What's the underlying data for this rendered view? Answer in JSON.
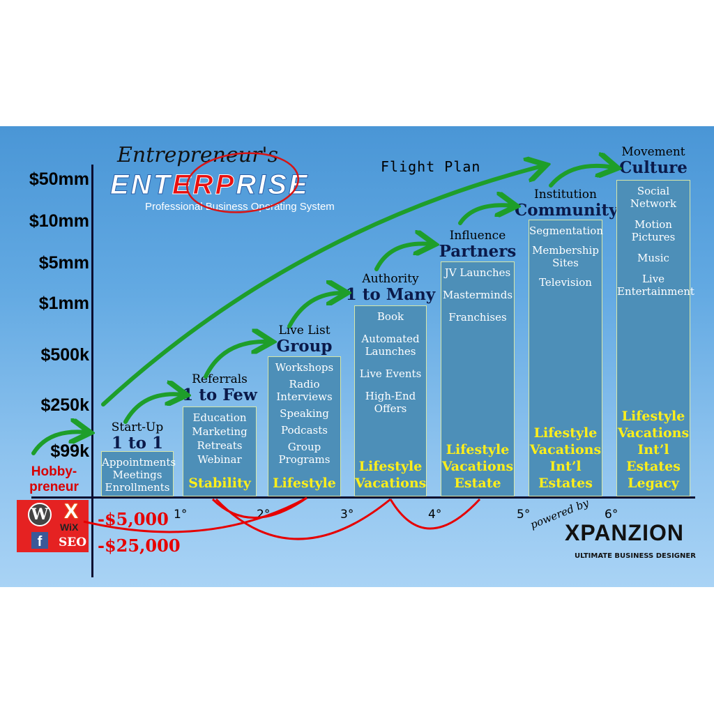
{
  "logo": {
    "script": "Entrepreneur's",
    "word": "ENTERPRISE",
    "word_parts": [
      "ENT",
      "ERP",
      "RISE"
    ],
    "tagline": "Professional Business Operating System"
  },
  "subtitle": "Flight Plan",
  "y_axis": [
    "$50mm",
    "$10mm",
    "$5mm",
    "$1mm",
    "$500k",
    "$250k",
    "$99k"
  ],
  "negative_axis": [
    "-$5,000",
    "-$25,000"
  ],
  "x_ticks": [
    "1°",
    "2°",
    "3°",
    "4°",
    "5°",
    "6°"
  ],
  "hobby": "Hobby-preneur",
  "hobby_lines": [
    "Hobby-",
    "preneur"
  ],
  "badge": {
    "icons": [
      "wordpress-icon",
      "wix-icon",
      "facebook-icon"
    ],
    "wix": "WiX",
    "seo": "SEO"
  },
  "stages": [
    {
      "small": "Start-Up",
      "big": "1 to 1",
      "items": [
        "Appointments",
        "Meetings",
        "Enrollments"
      ],
      "footer": ""
    },
    {
      "small": "Referrals",
      "big": "1 to Few",
      "items": [
        "Education",
        "Marketing",
        "Retreats",
        "Webinar"
      ],
      "footer": "Stability"
    },
    {
      "small": "Live List",
      "big": "Group",
      "items": [
        "Workshops",
        "Radio Interviews",
        "Speaking",
        "Podcasts",
        "Group Programs"
      ],
      "footer": "Lifestyle"
    },
    {
      "small": "Authority",
      "big": "1 to Many",
      "items": [
        "Book",
        "Automated Launches",
        "Live Events",
        "High-End Offers"
      ],
      "footer": "Lifestyle Vacations"
    },
    {
      "small": "Influence",
      "big": "Partners",
      "items": [
        "JV Launches",
        "Masterminds",
        "Franchises"
      ],
      "footer": "Lifestyle Vacations Estate"
    },
    {
      "small": "Institution",
      "big": "Community",
      "items": [
        "Segmentation",
        "Membership Sites",
        "Television"
      ],
      "footer": "Lifestyle Vacations Int’l Estates"
    },
    {
      "small": "Movement",
      "big": "Culture",
      "items": [
        "Social Network",
        "Motion Pictures",
        "Music",
        "Live Entertainment"
      ],
      "footer": "Lifestyle Vacations Int’l Estates Legacy"
    }
  ],
  "brand": {
    "powered": "powered by",
    "name": "XPANZION",
    "tagline": "ULTIMATE BUSINESS DESIGNER"
  },
  "colors": {
    "arrow": "#1e9e2a",
    "red": "#e60000",
    "bar": "#4d8fb8",
    "footer": "#ffef1a"
  }
}
